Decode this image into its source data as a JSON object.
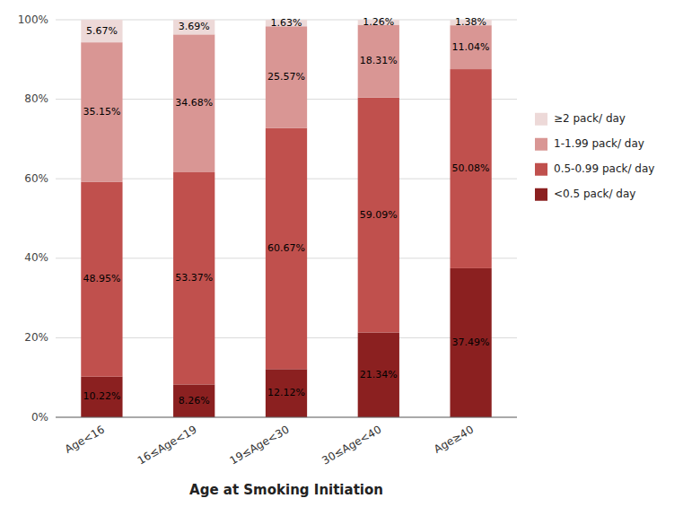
{
  "chart_data": {
    "type": "bar",
    "stacked": true,
    "xlabel": "Age at Smoking Initiation",
    "categories": [
      "Age<16",
      "16≤Age<19",
      "19≤Age<30",
      "30≤Age<40",
      "Age≥40"
    ],
    "series": [
      {
        "name": "<0.5 pack/ day",
        "color": "#8B2020",
        "values": [
          10.22,
          8.26,
          12.12,
          21.34,
          37.49
        ],
        "value_labels": [
          "10.22%",
          "8.26%",
          "12.12%",
          "21.34%",
          "37.49%"
        ]
      },
      {
        "name": "0.5-0.99 pack/ day",
        "color": "#C0504D",
        "values": [
          48.95,
          53.37,
          60.67,
          59.09,
          50.08
        ],
        "value_labels": [
          "48.95%",
          "53.37%",
          "60.67%",
          "59.09%",
          "50.08%"
        ]
      },
      {
        "name": "1-1.99 pack/ day",
        "color": "#D99694",
        "values": [
          35.15,
          34.68,
          25.57,
          18.31,
          11.04
        ],
        "value_labels": [
          "35.15%",
          "34.68%",
          "25.57%",
          "18.31%",
          "11.04%"
        ]
      },
      {
        "name": "≥2 pack/ day",
        "color": "#EDD9D8",
        "values": [
          5.67,
          3.69,
          1.63,
          1.26,
          1.38
        ],
        "value_labels": [
          "5.67%",
          "3.69%",
          "1.63%",
          "1.26%",
          "1.38%"
        ]
      }
    ],
    "ylim": [
      0,
      100
    ],
    "yticks": [
      {
        "value": 0,
        "label": "0%"
      },
      {
        "value": 20,
        "label": "20%"
      },
      {
        "value": 40,
        "label": "40%"
      },
      {
        "value": 60,
        "label": "60%"
      },
      {
        "value": 80,
        "label": "80%"
      },
      {
        "value": 100,
        "label": "100%"
      }
    ],
    "grid": true,
    "data_labels": true,
    "legend": "right"
  }
}
